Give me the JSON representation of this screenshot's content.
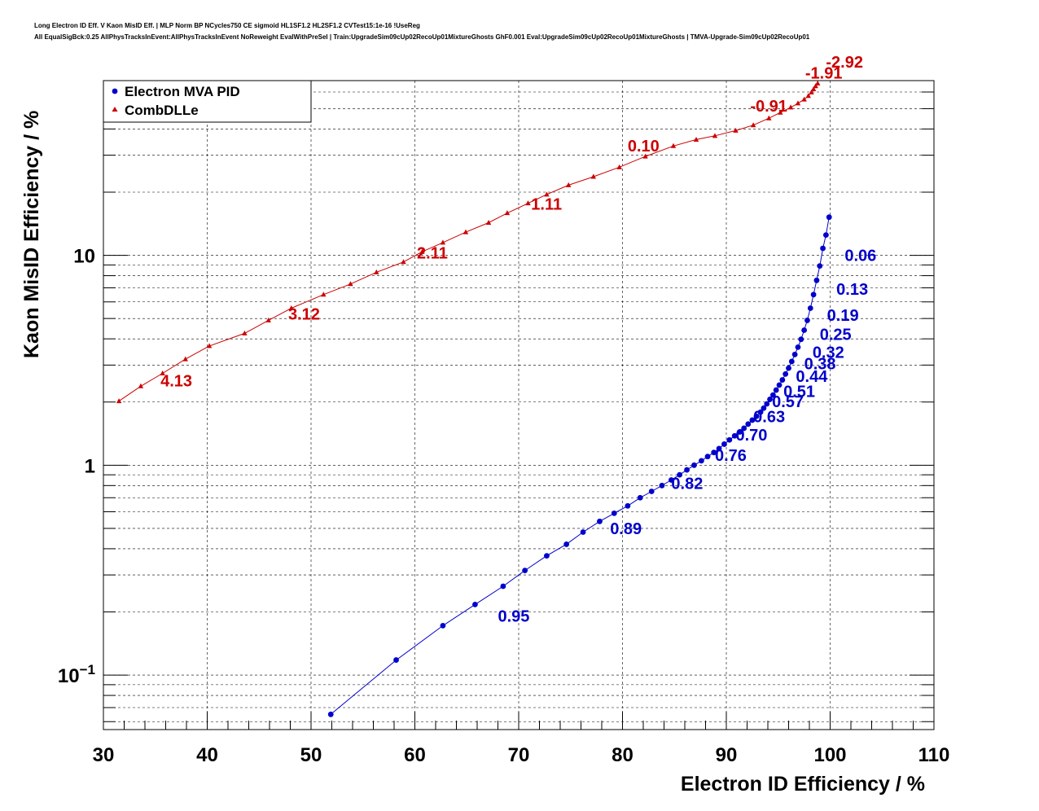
{
  "title_lines": [
    "Long Electron ID Eff. V Kaon MisID Eff. | MLP Norm BP NCycles750 CE sigmoid HL1SF1.2 HL2SF1.2 CVTest15:1e-16 !UseReg",
    "All EqualSigBck:0.25 AllPhysTracksInEvent:AllPhysTracksInEvent NoReweight EvalWithPreSel | Train:UpgradeSim09cUp02RecoUp01MixtureGhosts GhF0.001 Eval:UpgradeSim09cUp02RecoUp01MixtureGhosts | TMVA-Upgrade-Sim09cUp02RecoUp01"
  ],
  "chart_data": {
    "type": "scatter",
    "xlabel": "Electron ID Efficiency / %",
    "ylabel": "Kaon MisID Efficiency / %",
    "xlim": [
      30,
      110
    ],
    "ylim": [
      0.055,
      68
    ],
    "yscale": "log",
    "grid": true,
    "legend_position": "top-left",
    "x_ticks": [
      30,
      40,
      50,
      60,
      70,
      80,
      90,
      100,
      110
    ],
    "y_ticks": [
      {
        "value": 0.1,
        "base": "10",
        "exp": "−1"
      },
      {
        "value": 1,
        "base": "1",
        "exp": ""
      },
      {
        "value": 10,
        "base": "10",
        "exp": ""
      }
    ],
    "series": [
      {
        "name": "Electron MVA PID",
        "color": "#0000cc",
        "marker": "circle",
        "x": [
          51.9,
          58.2,
          62.7,
          65.8,
          68.5,
          70.6,
          72.7,
          74.6,
          76.2,
          77.8,
          79.2,
          80.5,
          81.7,
          82.8,
          83.8,
          84.7,
          85.5,
          86.2,
          86.9,
          87.6,
          88.2,
          88.8,
          89.3,
          89.8,
          90.3,
          90.8,
          91.3,
          91.7,
          92.1,
          92.5,
          92.9,
          93.3,
          93.6,
          93.9,
          94.2,
          94.5,
          94.8,
          95.1,
          95.4,
          95.7,
          96.0,
          96.3,
          96.6,
          96.9,
          97.2,
          97.5,
          97.8,
          98.1,
          98.4,
          98.7,
          99.0,
          99.3,
          99.6,
          99.9
        ],
        "y": [
          0.065,
          0.118,
          0.172,
          0.217,
          0.265,
          0.315,
          0.37,
          0.42,
          0.48,
          0.54,
          0.59,
          0.64,
          0.7,
          0.75,
          0.8,
          0.85,
          0.9,
          0.95,
          1.0,
          1.05,
          1.1,
          1.15,
          1.2,
          1.26,
          1.32,
          1.38,
          1.44,
          1.5,
          1.57,
          1.64,
          1.71,
          1.79,
          1.87,
          1.96,
          2.06,
          2.16,
          2.28,
          2.41,
          2.55,
          2.72,
          2.9,
          3.12,
          3.37,
          3.65,
          3.98,
          4.4,
          4.9,
          5.6,
          6.5,
          7.6,
          8.9,
          10.8,
          12.5,
          15.2
        ]
      },
      {
        "name": "CombDLLe",
        "color": "#cc0000",
        "marker": "triangle",
        "x": [
          31.5,
          33.6,
          35.7,
          37.9,
          40.2,
          43.6,
          45.9,
          48.1,
          51.2,
          53.8,
          56.3,
          58.9,
          60.7,
          62.7,
          64.9,
          67.1,
          68.9,
          70.9,
          72.7,
          74.8,
          77.2,
          79.7,
          82.2,
          84.9,
          87.1,
          88.9,
          90.9,
          92.6,
          94.1,
          95.2,
          96.2,
          96.9,
          97.5,
          97.9,
          98.2,
          98.4,
          98.6,
          98.8
        ],
        "y": [
          2.02,
          2.38,
          2.74,
          3.2,
          3.7,
          4.25,
          4.9,
          5.6,
          6.5,
          7.3,
          8.3,
          9.3,
          10.4,
          11.5,
          12.9,
          14.3,
          15.9,
          17.7,
          19.5,
          21.6,
          23.7,
          26.3,
          29.6,
          33.2,
          35.6,
          37.1,
          39.3,
          41.7,
          45.0,
          47.9,
          50.7,
          53.0,
          55.3,
          57.5,
          59.8,
          61.9,
          64.0,
          66.0
        ]
      }
    ],
    "annotations": [
      {
        "text": "0.95",
        "x": 68.0,
        "y": 0.18,
        "color": "#0000cc"
      },
      {
        "text": "0.89",
        "x": 78.8,
        "y": 0.47,
        "color": "#0000cc"
      },
      {
        "text": "0.82",
        "x": 84.7,
        "y": 0.77,
        "color": "#0000cc"
      },
      {
        "text": "0.76",
        "x": 88.9,
        "y": 1.05,
        "color": "#0000cc"
      },
      {
        "text": "0.70",
        "x": 90.9,
        "y": 1.31,
        "color": "#0000cc"
      },
      {
        "text": "0.63",
        "x": 92.6,
        "y": 1.6,
        "color": "#0000cc"
      },
      {
        "text": "0.57",
        "x": 94.4,
        "y": 1.89,
        "color": "#0000cc"
      },
      {
        "text": "0.51",
        "x": 95.5,
        "y": 2.11,
        "color": "#0000cc"
      },
      {
        "text": "0.44",
        "x": 96.7,
        "y": 2.5,
        "color": "#0000cc"
      },
      {
        "text": "0.38",
        "x": 97.5,
        "y": 2.87,
        "color": "#0000cc"
      },
      {
        "text": "0.32",
        "x": 98.3,
        "y": 3.25,
        "color": "#0000cc"
      },
      {
        "text": "0.25",
        "x": 99.0,
        "y": 3.96,
        "color": "#0000cc"
      },
      {
        "text": "0.19",
        "x": 99.7,
        "y": 4.87,
        "color": "#0000cc"
      },
      {
        "text": "0.13",
        "x": 100.6,
        "y": 6.48,
        "color": "#0000cc"
      },
      {
        "text": "0.06",
        "x": 101.4,
        "y": 9.4,
        "color": "#0000cc"
      },
      {
        "text": "4.13",
        "x": 35.5,
        "y": 2.37,
        "color": "#cc0000"
      },
      {
        "text": "3.12",
        "x": 47.8,
        "y": 4.95,
        "color": "#cc0000"
      },
      {
        "text": "2.11",
        "x": 60.2,
        "y": 9.65,
        "color": "#cc0000"
      },
      {
        "text": "1.11",
        "x": 71.2,
        "y": 16.5,
        "color": "#cc0000"
      },
      {
        "text": "0.10",
        "x": 80.5,
        "y": 31.2,
        "color": "#cc0000"
      },
      {
        "text": "-0.91",
        "x": 92.3,
        "y": 48.5,
        "color": "#cc0000"
      },
      {
        "text": "-1.91",
        "x": 97.6,
        "y": 69.5,
        "color": "#cc0000"
      },
      {
        "text": "-2.92",
        "x": 99.6,
        "y": 78.5,
        "color": "#cc0000"
      }
    ]
  }
}
